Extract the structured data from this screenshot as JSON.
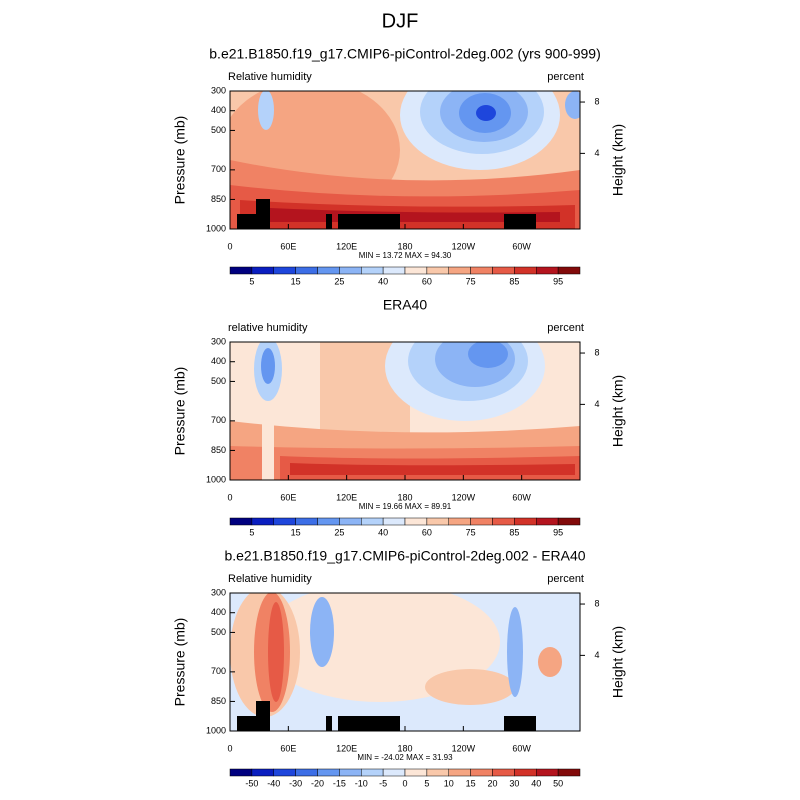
{
  "title": "DJF",
  "chart_data": [
    {
      "type": "contour",
      "title": "b.e21.B1850.f19_g17.CMIP6-piControl-2deg.002 (yrs 900-999)",
      "left_label": "Relative humidity",
      "right_label": "percent",
      "y_label": "Pressure (mb)",
      "y2_label": "Height (km)",
      "ylim": [
        1000,
        300
      ],
      "yticks": [
        300,
        400,
        500,
        700,
        850,
        1000
      ],
      "y2ticks": [
        4,
        8
      ],
      "xlim": [
        0,
        360
      ],
      "xticks": [
        0,
        {
          "value": 60,
          "label": "60E"
        },
        {
          "value": 120,
          "label": "120E"
        },
        180,
        {
          "value": 240,
          "label": "120W"
        },
        {
          "value": 300,
          "label": "60W"
        }
      ],
      "stats": "MIN = 13.72  MAX = 94.30",
      "colorbar_labels": [
        "5",
        "15",
        "25",
        "40",
        "60",
        "75",
        "85",
        "95"
      ],
      "colorbar_colors": [
        "#00007f",
        "#0a1ec0",
        "#1e46dc",
        "#3c6ee6",
        "#6496f0",
        "#8cb4f5",
        "#b4d2fa",
        "#dce9fc",
        "#fce6d7",
        "#f9c8aa",
        "#f5a582",
        "#f08264",
        "#e65a46",
        "#d23228",
        "#b4141e",
        "#820a0a"
      ]
    },
    {
      "type": "contour",
      "title": "ERA40",
      "left_label": "relative humidity",
      "right_label": "percent",
      "y_label": "Pressure (mb)",
      "y2_label": "Height (km)",
      "ylim": [
        1000,
        300
      ],
      "yticks": [
        300,
        400,
        500,
        700,
        850,
        1000
      ],
      "y2ticks": [
        4,
        8
      ],
      "xlim": [
        0,
        360
      ],
      "xticks": [
        0,
        {
          "value": 60,
          "label": "60E"
        },
        {
          "value": 120,
          "label": "120E"
        },
        180,
        {
          "value": 240,
          "label": "120W"
        },
        {
          "value": 300,
          "label": "60W"
        }
      ],
      "stats": "MIN = 19.66  MAX = 89.91",
      "colorbar_labels": [
        "5",
        "15",
        "25",
        "40",
        "60",
        "75",
        "85",
        "95"
      ],
      "colorbar_colors": [
        "#00007f",
        "#0a1ec0",
        "#1e46dc",
        "#3c6ee6",
        "#6496f0",
        "#8cb4f5",
        "#b4d2fa",
        "#dce9fc",
        "#fce6d7",
        "#f9c8aa",
        "#f5a582",
        "#f08264",
        "#e65a46",
        "#d23228",
        "#b4141e",
        "#820a0a"
      ]
    },
    {
      "type": "contour",
      "title": "b.e21.B1850.f19_g17.CMIP6-piControl-2deg.002 - ERA40",
      "left_label": "Relative humidity",
      "right_label": "percent",
      "y_label": "Pressure (mb)",
      "y2_label": "Height (km)",
      "ylim": [
        1000,
        300
      ],
      "yticks": [
        300,
        400,
        500,
        700,
        850,
        1000
      ],
      "y2ticks": [
        4,
        8
      ],
      "xlim": [
        0,
        360
      ],
      "xticks": [
        0,
        {
          "value": 60,
          "label": "60E"
        },
        {
          "value": 120,
          "label": "120E"
        },
        180,
        {
          "value": 240,
          "label": "120W"
        },
        {
          "value": 300,
          "label": "60W"
        }
      ],
      "stats": "MIN = -24.02  MAX = 31.93",
      "colorbar_labels": [
        "-50",
        "-40",
        "-30",
        "-20",
        "-15",
        "-10",
        "-5",
        "0",
        "5",
        "10",
        "15",
        "20",
        "30",
        "40",
        "50"
      ],
      "colorbar_colors": [
        "#00007f",
        "#0a1ec0",
        "#1e46dc",
        "#3c6ee6",
        "#6496f0",
        "#8cb4f5",
        "#b4d2fa",
        "#dce9fc",
        "#fce6d7",
        "#f9c8aa",
        "#f5a582",
        "#f08264",
        "#e65a46",
        "#d23228",
        "#b4141e",
        "#820a0a"
      ]
    }
  ]
}
